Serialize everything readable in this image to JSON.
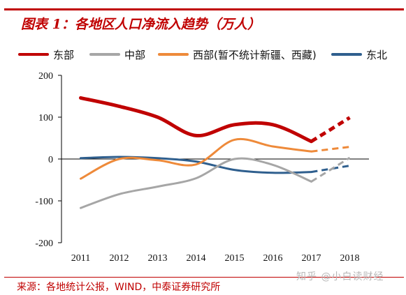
{
  "title": "图表 1：各地区人口净流入趋势（万人）",
  "source": "来源：各地统计公报，WIND，中泰证券研究所",
  "watermark": "知乎 @小白读财经",
  "chart_data": {
    "type": "line",
    "x": [
      "2011",
      "2012",
      "2013",
      "2014",
      "2015",
      "2016",
      "2017",
      "2018"
    ],
    "ylim": [
      -200,
      200
    ],
    "yticks": [
      200,
      100,
      0,
      -100,
      -200
    ],
    "yticklabels": [
      "200",
      "100",
      "0",
      "-100",
      "-200"
    ],
    "legend_position": "top",
    "dashed_from": "2017",
    "series": [
      {
        "name": "东部",
        "color": "#c00000",
        "width": 5,
        "values": [
          146,
          126,
          100,
          56,
          82,
          82,
          42,
          99
        ]
      },
      {
        "name": "中部",
        "color": "#a6a6a6",
        "width": 3,
        "values": [
          -117,
          -84,
          -66,
          -46,
          0,
          -14,
          -54,
          3
        ]
      },
      {
        "name": "西部(暂不统计新疆、西藏)",
        "color": "#ee8a3a",
        "width": 3,
        "values": [
          -47,
          0,
          -3,
          -13,
          46,
          30,
          18,
          29
        ]
      },
      {
        "name": "东北",
        "color": "#2f5f8e",
        "width": 3,
        "values": [
          2,
          5,
          2,
          -6,
          -26,
          -33,
          -31,
          -16
        ]
      }
    ]
  }
}
